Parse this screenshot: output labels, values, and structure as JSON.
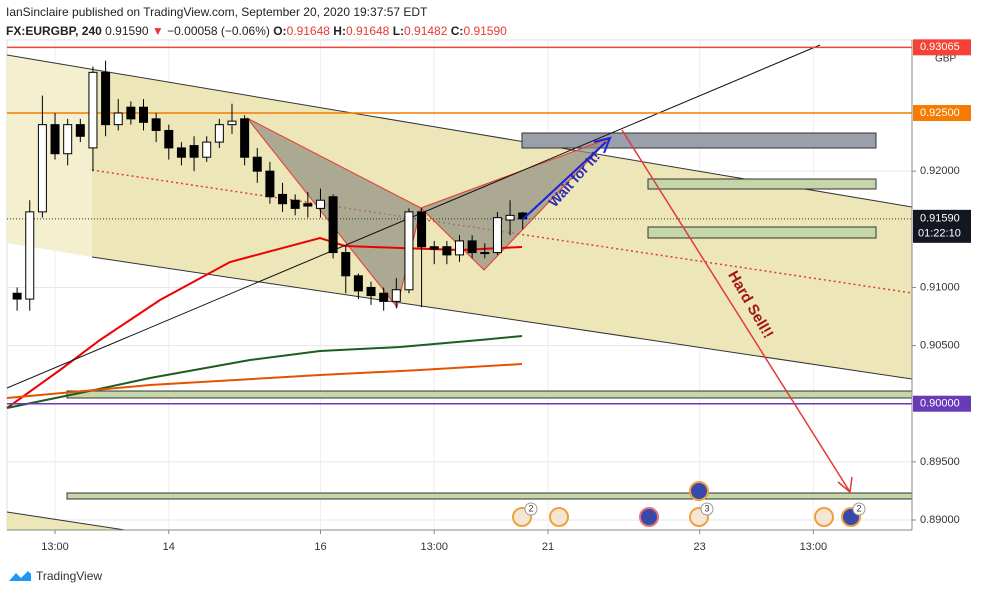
{
  "chart_data": {
    "type": "candlestick",
    "header": "IanSinclaire published on TradingView.com, September 20, 2020 19:37:57 EDT",
    "symbol": "FX:EURGBP, 240",
    "last": "0.91590",
    "arrow": "▼",
    "change": "−0.00058 (−0.06%)",
    "ohlc_labels": [
      "O:",
      "H:",
      "L:",
      "C:"
    ],
    "ohlc_values": [
      "0.91648",
      "0.91648",
      "0.91482",
      "0.91590"
    ],
    "currency": "GBP",
    "open": [
      0.9095,
      0.909,
      0.9165,
      0.924,
      0.9215,
      0.924,
      0.922,
      0.9285,
      0.924,
      0.9255,
      0.9255,
      0.9245,
      0.9235,
      0.922,
      0.9222,
      0.9212,
      0.9225,
      0.924,
      0.9245,
      0.9212,
      0.92,
      0.918,
      0.9175,
      0.9172,
      0.9168,
      0.9178,
      0.913,
      0.911,
      0.91,
      0.9095,
      0.9088,
      0.9098,
      0.9165,
      0.9135,
      0.9135,
      0.9128,
      0.914,
      0.913,
      0.913,
      0.9158,
      0.9164
    ],
    "high": [
      0.91,
      0.9175,
      0.9265,
      0.925,
      0.9245,
      0.9245,
      0.929,
      0.9295,
      0.9262,
      0.926,
      0.9262,
      0.925,
      0.924,
      0.9225,
      0.923,
      0.923,
      0.9245,
      0.9258,
      0.9248,
      0.922,
      0.9208,
      0.919,
      0.918,
      0.9182,
      0.9185,
      0.918,
      0.9135,
      0.9112,
      0.9105,
      0.91,
      0.9108,
      0.9168,
      0.9168,
      0.914,
      0.914,
      0.9145,
      0.9145,
      0.9138,
      0.9165,
      0.9175,
      0.9165
    ],
    "low": [
      0.908,
      0.908,
      0.916,
      0.921,
      0.9205,
      0.9225,
      0.92,
      0.923,
      0.9235,
      0.924,
      0.9235,
      0.9225,
      0.921,
      0.9205,
      0.92,
      0.9208,
      0.922,
      0.9232,
      0.9205,
      0.919,
      0.9172,
      0.9165,
      0.9162,
      0.916,
      0.916,
      0.9125,
      0.9095,
      0.909,
      0.9085,
      0.908,
      0.9082,
      0.9095,
      0.9083,
      0.912,
      0.912,
      0.9122,
      0.9125,
      0.9125,
      0.9128,
      0.9145,
      0.915
    ],
    "close": [
      0.909,
      0.9165,
      0.924,
      0.9215,
      0.924,
      0.923,
      0.9285,
      0.924,
      0.925,
      0.9245,
      0.9242,
      0.9235,
      0.922,
      0.9212,
      0.9212,
      0.9225,
      0.924,
      0.9243,
      0.9212,
      0.92,
      0.9178,
      0.9172,
      0.9168,
      0.917,
      0.9175,
      0.913,
      0.911,
      0.9097,
      0.9093,
      0.9088,
      0.9098,
      0.9165,
      0.9135,
      0.9133,
      0.9128,
      0.914,
      0.913,
      0.913,
      0.916,
      0.9162,
      0.9159
    ],
    "up_color": "#ffffff",
    "down_color": "#000000",
    "ylim": [
      0.88914,
      0.93128
    ],
    "yticks": [
      {
        "value": 0.89,
        "label": "0.89000"
      },
      {
        "value": 0.895,
        "label": "0.89500"
      },
      {
        "value": 0.905,
        "label": "0.90500"
      },
      {
        "value": 0.91,
        "label": "0.91000"
      },
      {
        "value": 0.92,
        "label": "0.92000"
      }
    ],
    "price_lines": [
      {
        "value": 0.93065,
        "label": "0.93065",
        "color": "#f44336"
      },
      {
        "value": 0.925,
        "label": "0.92500",
        "color": "#f57c00"
      },
      {
        "value": 0.9,
        "label": "0.90000",
        "color": "#673ab7"
      }
    ],
    "last_price": {
      "value": 0.9159,
      "label": "0.91590",
      "countdown": "01:22:10",
      "color": "#131722"
    },
    "xlim": [
      -0.8,
      70.8
    ],
    "xticks": [
      {
        "value": 3,
        "label": "13:00"
      },
      {
        "value": 12,
        "label": "14"
      },
      {
        "value": 24,
        "label": "16"
      },
      {
        "value": 33,
        "label": "13:00"
      },
      {
        "value": 42,
        "label": "21"
      },
      {
        "value": 54,
        "label": "23"
      },
      {
        "value": 63,
        "label": "13:00"
      }
    ],
    "annotations": [
      "Wait for it!",
      "Hard Sell!!"
    ],
    "event_counts": [
      "2",
      "3",
      "2"
    ],
    "brand": "TradingView"
  }
}
